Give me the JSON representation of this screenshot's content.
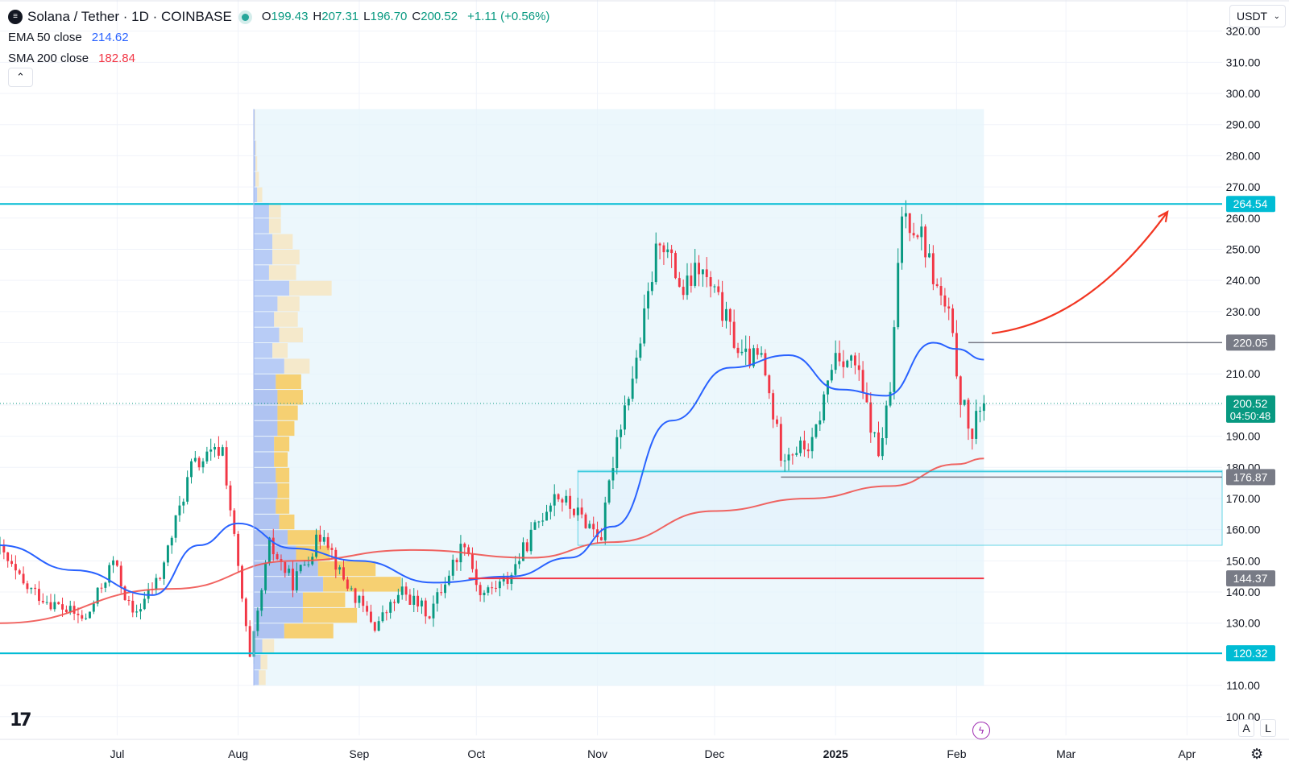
{
  "header": {
    "symbol_icon": "solana-logo-icon",
    "title": "Solana / Tether · 1D · COINBASE",
    "ohlc": [
      {
        "k": "O",
        "v": "199.43"
      },
      {
        "k": "H",
        "v": "207.31"
      },
      {
        "k": "L",
        "v": "196.70"
      },
      {
        "k": "C",
        "v": "200.52"
      }
    ],
    "change": "+1.11 (+0.56%)",
    "indicators": [
      {
        "name": "EMA 50 close",
        "value": "214.62",
        "color": "#2962ff"
      },
      {
        "name": "SMA 200 close",
        "value": "182.84",
        "color": "#f23645"
      }
    ],
    "collapse_icon": "chevron-up-icon"
  },
  "currency": {
    "label": "USDT",
    "icon": "chevron-down-icon"
  },
  "footer": {
    "logo_text": "17",
    "scale_buttons": [
      "A",
      "L"
    ],
    "settings_icon": "gear-icon",
    "bolt_icon": "lightning-icon"
  },
  "colors": {
    "up": "#089981",
    "down": "#f23645",
    "ema": "#2962ff",
    "sma": "#ef5350",
    "level": "#00bcd4",
    "poc": "#f23645",
    "arrow": "#f23622",
    "vp_up": "#b2c7f5",
    "vp_down": "#f6e7c5",
    "vp_va_up": "#a8bdf0",
    "vp_va_down": "#f7cb63",
    "zone": "#e6f4fb"
  },
  "chart_data": {
    "type": "candlestick",
    "title": "Solana / Tether · 1D · COINBASE",
    "y_axis": {
      "ticks": [
        "100.00",
        "110.00",
        "120.00",
        "130.00",
        "140.00",
        "150.00",
        "160.00",
        "170.00",
        "180.00",
        "190.00",
        "200.00",
        "210.00",
        "220.00",
        "230.00",
        "240.00",
        "250.00",
        "260.00",
        "270.00",
        "280.00",
        "290.00",
        "300.00",
        "310.00",
        "320.00"
      ],
      "range": [
        94,
        330
      ]
    },
    "x_axis": {
      "ticks": [
        "Jul",
        "Aug",
        "Sep",
        "Oct",
        "Nov",
        "Dec",
        "2025",
        "Feb",
        "Mar",
        "Apr"
      ],
      "tick_dates": [
        "2024-07-01",
        "2024-08-01",
        "2024-09-01",
        "2024-10-01",
        "2024-11-01",
        "2024-12-01",
        "2025-01-01",
        "2025-02-01",
        "2025-03-01",
        "2025-04-01"
      ],
      "range_start": "2024-06-01",
      "range_end": "2025-04-10"
    },
    "price_labels": [
      {
        "value": "264.54",
        "kind": "horizontal-level"
      },
      {
        "value": "220.05",
        "kind": "horizontal-level"
      },
      {
        "value": "200.52",
        "kind": "last-price",
        "countdown": "04:50:48"
      },
      {
        "value": "176.87",
        "kind": "horizontal-level"
      },
      {
        "value": "144.37",
        "kind": "poc"
      },
      {
        "value": "120.32",
        "kind": "horizontal-level"
      }
    ],
    "levels": [
      264.54,
      220.05,
      176.87,
      144.37,
      120.32
    ],
    "last_price": 200.52,
    "demand_zone": {
      "from": "2024-10-27",
      "low": 155,
      "high": 179
    },
    "volume_profile_range": {
      "from": "2024-08-05",
      "to": "2025-02-08",
      "low": 110,
      "high": 295
    },
    "arrow": {
      "from_date": "2025-02-10",
      "from_price": 223,
      "to_date": "2025-03-27",
      "to_price": 262
    },
    "pivots": [
      [
        "2024-06-01",
        155
      ],
      [
        "2024-06-08",
        142
      ],
      [
        "2024-06-16",
        136
      ],
      [
        "2024-06-24",
        131
      ],
      [
        "2024-07-01",
        150
      ],
      [
        "2024-07-06",
        132
      ],
      [
        "2024-07-13",
        145
      ],
      [
        "2024-07-21",
        180
      ],
      [
        "2024-07-29",
        186
      ],
      [
        "2024-08-05",
        118
      ],
      [
        "2024-08-10",
        155
      ],
      [
        "2024-08-16",
        143
      ],
      [
        "2024-08-24",
        160
      ],
      [
        "2024-08-28",
        146
      ],
      [
        "2024-09-06",
        129
      ],
      [
        "2024-09-13",
        140
      ],
      [
        "2024-09-20",
        133
      ],
      [
        "2024-09-29",
        157
      ],
      [
        "2024-10-03",
        139
      ],
      [
        "2024-10-10",
        144
      ],
      [
        "2024-10-22",
        172
      ],
      [
        "2024-11-03",
        158
      ],
      [
        "2024-11-07",
        190
      ],
      [
        "2024-11-12",
        214
      ],
      [
        "2024-11-18",
        255
      ],
      [
        "2024-11-24",
        236
      ],
      [
        "2024-11-28",
        244
      ],
      [
        "2024-12-03",
        233
      ],
      [
        "2024-12-09",
        215
      ],
      [
        "2024-12-14",
        215
      ],
      [
        "2024-12-19",
        185
      ],
      [
        "2024-12-27",
        187
      ],
      [
        "2025-01-02",
        217
      ],
      [
        "2025-01-07",
        213
      ],
      [
        "2025-01-13",
        184
      ],
      [
        "2025-01-16",
        204
      ],
      [
        "2025-01-19",
        262
      ],
      [
        "2025-01-24",
        255
      ],
      [
        "2025-01-28",
        237
      ],
      [
        "2025-01-31",
        228
      ],
      [
        "2025-02-03",
        203
      ],
      [
        "2025-02-06",
        189
      ],
      [
        "2025-02-08",
        200.52
      ]
    ],
    "ema50": [
      [
        "2024-06-01",
        155
      ],
      [
        "2024-06-20",
        147
      ],
      [
        "2024-07-10",
        139
      ],
      [
        "2024-07-22",
        155
      ],
      [
        "2024-08-01",
        162
      ],
      [
        "2024-08-15",
        154
      ],
      [
        "2024-09-01",
        150
      ],
      [
        "2024-09-20",
        143
      ],
      [
        "2024-10-10",
        145
      ],
      [
        "2024-10-25",
        151
      ],
      [
        "2024-11-05",
        161
      ],
      [
        "2024-11-20",
        195
      ],
      [
        "2024-12-05",
        212
      ],
      [
        "2024-12-20",
        216
      ],
      [
        "2025-01-02",
        205
      ],
      [
        "2025-01-14",
        203
      ],
      [
        "2025-01-26",
        220
      ],
      [
        "2025-02-01",
        218
      ],
      [
        "2025-02-08",
        214.6
      ]
    ],
    "sma200": [
      [
        "2024-06-01",
        130
      ],
      [
        "2024-07-15",
        141
      ],
      [
        "2024-08-15",
        150
      ],
      [
        "2024-09-15",
        153.5
      ],
      [
        "2024-10-15",
        151
      ],
      [
        "2024-11-05",
        156
      ],
      [
        "2024-12-01",
        166
      ],
      [
        "2024-12-25",
        170
      ],
      [
        "2025-01-15",
        174
      ],
      [
        "2025-02-01",
        181
      ],
      [
        "2025-02-08",
        182.84
      ]
    ],
    "volume_profile": [
      {
        "low": 110,
        "high": 115,
        "up": 3,
        "down": 4,
        "value_area": false
      },
      {
        "low": 115,
        "high": 120,
        "up": 4,
        "down": 4,
        "value_area": false
      },
      {
        "low": 120,
        "high": 125,
        "up": 5,
        "down": 7,
        "value_area": false
      },
      {
        "low": 125,
        "high": 130,
        "up": 18,
        "down": 29,
        "value_area": true
      },
      {
        "low": 130,
        "high": 135,
        "up": 29,
        "down": 32,
        "value_area": true
      },
      {
        "low": 135,
        "high": 140,
        "up": 29,
        "down": 25,
        "value_area": true
      },
      {
        "low": 140,
        "high": 145,
        "up": 41,
        "down": 46,
        "value_area": true
      },
      {
        "low": 145,
        "high": 150,
        "up": 38,
        "down": 34,
        "value_area": true
      },
      {
        "low": 150,
        "high": 155,
        "up": 25,
        "down": 20,
        "value_area": true
      },
      {
        "low": 155,
        "high": 160,
        "up": 20,
        "down": 19,
        "value_area": true
      },
      {
        "low": 160,
        "high": 165,
        "up": 15,
        "down": 9,
        "value_area": true
      },
      {
        "low": 165,
        "high": 170,
        "up": 13,
        "down": 8,
        "value_area": true
      },
      {
        "low": 170,
        "high": 175,
        "up": 14,
        "down": 7,
        "value_area": true
      },
      {
        "low": 175,
        "high": 180,
        "up": 13,
        "down": 8,
        "value_area": true
      },
      {
        "low": 180,
        "high": 185,
        "up": 12,
        "down": 8,
        "value_area": true
      },
      {
        "low": 185,
        "high": 190,
        "up": 12,
        "down": 9,
        "value_area": true
      },
      {
        "low": 190,
        "high": 195,
        "up": 14,
        "down": 10,
        "value_area": true
      },
      {
        "low": 195,
        "high": 200,
        "up": 14,
        "down": 12,
        "value_area": true
      },
      {
        "low": 200,
        "high": 205,
        "up": 14,
        "down": 15,
        "value_area": true
      },
      {
        "low": 205,
        "high": 210,
        "up": 13,
        "down": 15,
        "value_area": true
      },
      {
        "low": 210,
        "high": 215,
        "up": 18,
        "down": 15,
        "value_area": false
      },
      {
        "low": 215,
        "high": 220,
        "up": 11,
        "down": 9,
        "value_area": false
      },
      {
        "low": 220,
        "high": 225,
        "up": 15,
        "down": 14,
        "value_area": false
      },
      {
        "low": 225,
        "high": 230,
        "up": 12,
        "down": 14,
        "value_area": false
      },
      {
        "low": 230,
        "high": 235,
        "up": 14,
        "down": 13,
        "value_area": false
      },
      {
        "low": 235,
        "high": 240,
        "up": 21,
        "down": 25,
        "value_area": false
      },
      {
        "low": 240,
        "high": 245,
        "up": 9,
        "down": 16,
        "value_area": false
      },
      {
        "low": 245,
        "high": 250,
        "up": 11,
        "down": 16,
        "value_area": false
      },
      {
        "low": 250,
        "high": 255,
        "up": 11,
        "down": 12,
        "value_area": false
      },
      {
        "low": 255,
        "high": 260,
        "up": 9,
        "down": 7,
        "value_area": false
      },
      {
        "low": 260,
        "high": 265,
        "up": 9,
        "down": 7,
        "value_area": false
      },
      {
        "low": 265,
        "high": 270,
        "up": 2,
        "down": 3,
        "value_area": false
      },
      {
        "low": 270,
        "high": 275,
        "up": 1,
        "down": 2,
        "value_area": false
      },
      {
        "low": 275,
        "high": 280,
        "up": 1,
        "down": 1,
        "value_area": false
      },
      {
        "low": 280,
        "high": 285,
        "up": 1,
        "down": 0.5,
        "value_area": false
      },
      {
        "low": 285,
        "high": 295,
        "up": 0.5,
        "down": 0.3,
        "value_area": false
      }
    ]
  }
}
